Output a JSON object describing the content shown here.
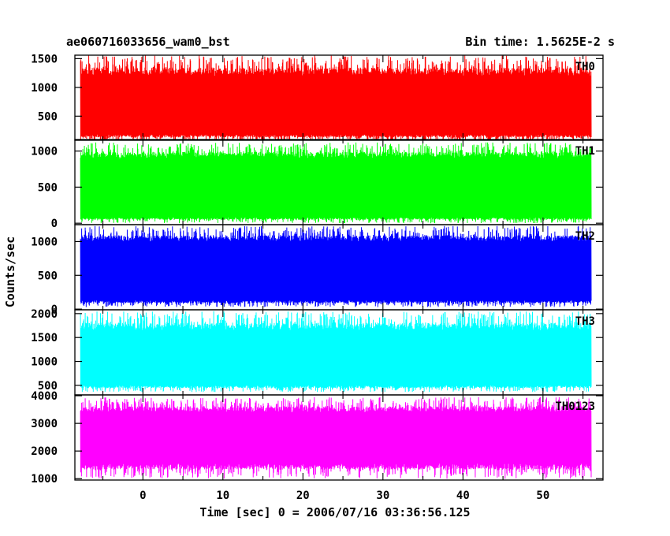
{
  "chart_data": {
    "type": "line",
    "title": "ae060716033656_wam0_bst",
    "bin_time_label": "Bin time: 1.5625E-2 s",
    "xlabel": "Time [sec] 0 = 2006/07/16 03:36:56.125",
    "ylabel": "Counts/sec",
    "xlim": [
      -8.5,
      57.5
    ],
    "data_x_range": [
      -7.8,
      56.0
    ],
    "x_ticks": [
      0,
      10,
      20,
      30,
      40,
      50
    ],
    "x_tick_labels": [
      "0",
      "10",
      "20",
      "30",
      "40",
      "50"
    ],
    "grid": false,
    "panels": [
      {
        "name": "TH0",
        "color": "#ff0000",
        "ylim": [
          80,
          1560
        ],
        "yticks": [
          500,
          1000,
          1500
        ],
        "ytick_labels": [
          "500",
          "1000",
          "1500"
        ],
        "mean": 650,
        "band_low": 180,
        "band_high": 1200,
        "spike_min": 60,
        "spike_max": 1560
      },
      {
        "name": "TH1",
        "color": "#00ff00",
        "ylim": [
          -20,
          1160
        ],
        "yticks": [
          0,
          500,
          1000
        ],
        "ytick_labels": [
          "0",
          "500",
          "1000"
        ],
        "mean": 430,
        "band_low": 80,
        "band_high": 900,
        "spike_min": 0,
        "spike_max": 1120
      },
      {
        "name": "TH2",
        "color": "#0000ff",
        "ylim": [
          -10,
          1250
        ],
        "yticks": [
          0,
          500,
          1000
        ],
        "ytick_labels": [
          "0",
          "500",
          "1000"
        ],
        "mean": 560,
        "band_low": 130,
        "band_high": 1000,
        "spike_min": 30,
        "spike_max": 1230
      },
      {
        "name": "TH3",
        "color": "#00ffff",
        "ylim": [
          300,
          2080
        ],
        "yticks": [
          500,
          1000,
          1500,
          2000
        ],
        "ytick_labels": [
          "500",
          "1000",
          "1500",
          "2000"
        ],
        "mean": 1100,
        "band_low": 500,
        "band_high": 1650,
        "spike_min": 360,
        "spike_max": 2050
      },
      {
        "name": "TH0123",
        "color": "#ff00ff",
        "ylim": [
          950,
          4030
        ],
        "yticks": [
          1000,
          2000,
          3000,
          4000
        ],
        "ytick_labels": [
          "1000",
          "2000",
          "3000",
          "4000"
        ],
        "mean": 2450,
        "band_low": 1550,
        "band_high": 3400,
        "spike_min": 1000,
        "spike_max": 3950
      }
    ]
  }
}
